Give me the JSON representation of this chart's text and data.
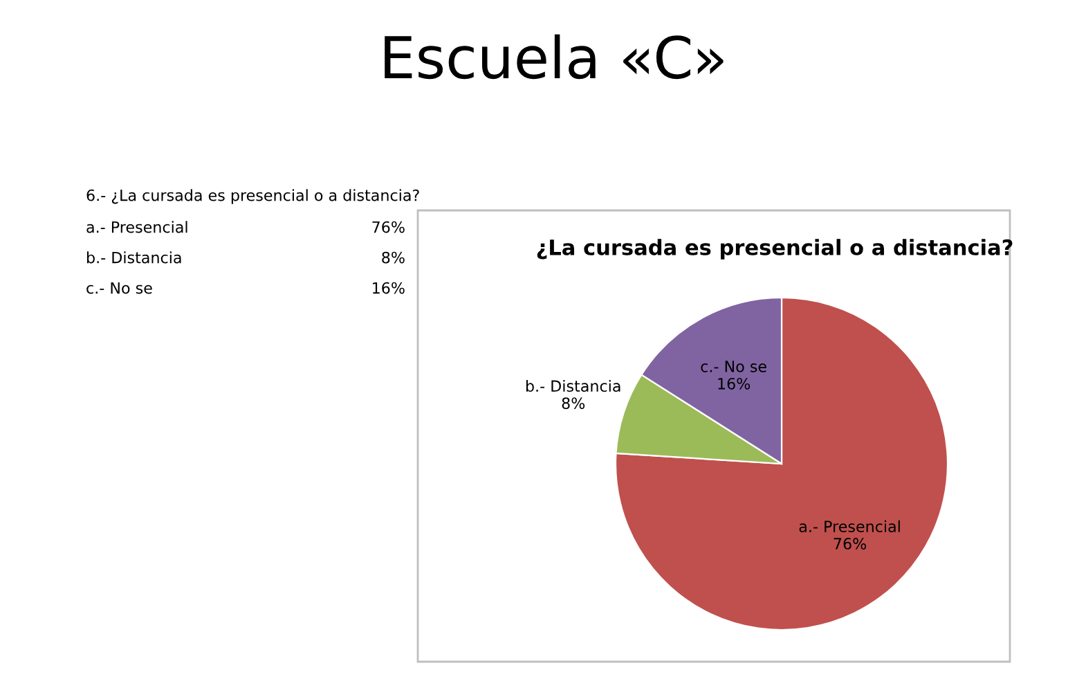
{
  "chart_data": {
    "type": "pie",
    "title": "¿La cursada es presencial o a distancia?",
    "categories": [
      "a.- Presencial",
      "b.- Distancia",
      "c.- No se"
    ],
    "values": [
      76,
      8,
      16
    ],
    "value_labels": [
      "76%",
      "8%",
      "16%"
    ],
    "colors": [
      "#c0504d",
      "#9bbb59",
      "#8064a2"
    ],
    "legend": false,
    "annotations": [
      "Escuela «C»",
      "6.- ¿La cursada es presencial o a distancia?"
    ]
  }
}
